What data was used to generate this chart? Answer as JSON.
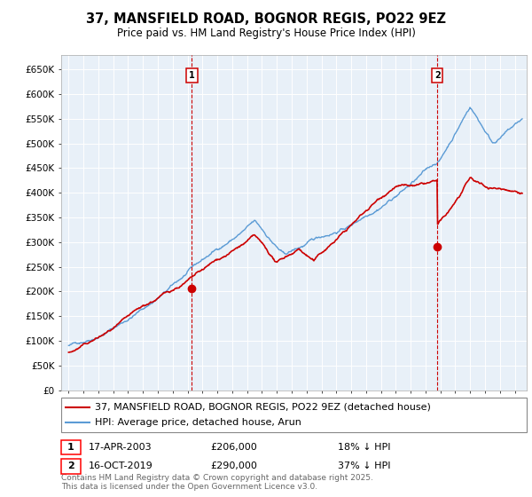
{
  "title": "37, MANSFIELD ROAD, BOGNOR REGIS, PO22 9EZ",
  "subtitle": "Price paid vs. HM Land Registry's House Price Index (HPI)",
  "ylim": [
    0,
    680000
  ],
  "yticks": [
    0,
    50000,
    100000,
    150000,
    200000,
    250000,
    300000,
    350000,
    400000,
    450000,
    500000,
    550000,
    600000,
    650000
  ],
  "ytick_labels": [
    "£0",
    "£50K",
    "£100K",
    "£150K",
    "£200K",
    "£250K",
    "£300K",
    "£350K",
    "£400K",
    "£450K",
    "£500K",
    "£550K",
    "£600K",
    "£650K"
  ],
  "xlim_start": 1994.5,
  "xlim_end": 2025.8,
  "background_color": "#ffffff",
  "plot_bg_color": "#e8f0f8",
  "grid_color": "#ffffff",
  "hpi_color": "#5b9bd5",
  "price_color": "#cc0000",
  "marker1_x": 2003.29,
  "marker1_y": 206000,
  "marker2_x": 2019.79,
  "marker2_y": 290000,
  "sale1_date": "17-APR-2003",
  "sale1_price": "£206,000",
  "sale1_hpi": "18% ↓ HPI",
  "sale2_date": "16-OCT-2019",
  "sale2_price": "£290,000",
  "sale2_hpi": "37% ↓ HPI",
  "legend_line1": "37, MANSFIELD ROAD, BOGNOR REGIS, PO22 9EZ (detached house)",
  "legend_line2": "HPI: Average price, detached house, Arun",
  "footnote": "Contains HM Land Registry data © Crown copyright and database right 2025.\nThis data is licensed under the Open Government Licence v3.0.",
  "title_fontsize": 10.5,
  "subtitle_fontsize": 8.5,
  "tick_fontsize": 7.5,
  "legend_fontsize": 8
}
